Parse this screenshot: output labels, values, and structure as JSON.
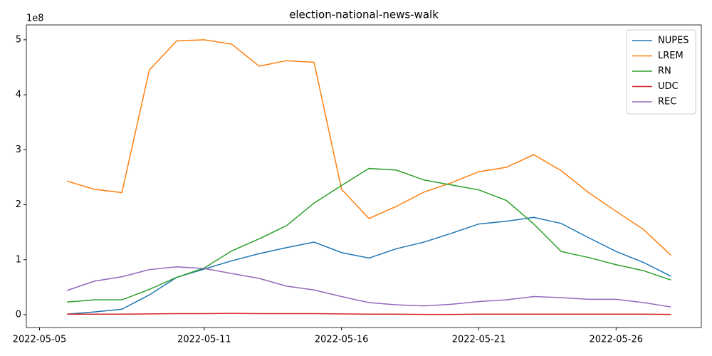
{
  "chart_data": {
    "type": "line",
    "title": "election-national-news-walk",
    "x": [
      "2022-05-06",
      "2022-05-07",
      "2022-05-08",
      "2022-05-09",
      "2022-05-10",
      "2022-05-11",
      "2022-05-12",
      "2022-05-13",
      "2022-05-14",
      "2022-05-15",
      "2022-05-16",
      "2022-05-17",
      "2022-05-18",
      "2022-05-19",
      "2022-05-20",
      "2022-05-21",
      "2022-05-22",
      "2022-05-23",
      "2022-05-24",
      "2022-05-25",
      "2022-05-26",
      "2022-05-27",
      "2022-05-28"
    ],
    "series": [
      {
        "name": "NUPES",
        "color": "#1f77b4",
        "values": [
          1000000.0,
          5000000.0,
          10000000.0,
          36000000.0,
          68000000.0,
          83000000.0,
          98000000.0,
          111000000.0,
          122000000.0,
          132000000.0,
          113000000.0,
          103000000.0,
          120000000.0,
          132000000.0,
          148000000.0,
          165000000.0,
          170000000.0,
          177000000.0,
          166000000.0,
          140000000.0,
          115000000.0,
          95000000.0,
          70000000.0
        ]
      },
      {
        "name": "LREM",
        "color": "#ff7f0e",
        "values": [
          243000000.0,
          228000000.0,
          222000000.0,
          445000000.0,
          498000000.0,
          500000000.0,
          492000000.0,
          452000000.0,
          462000000.0,
          459000000.0,
          228000000.0,
          175000000.0,
          197000000.0,
          223000000.0,
          240000000.0,
          260000000.0,
          268000000.0,
          291000000.0,
          262000000.0,
          222000000.0,
          188000000.0,
          155000000.0,
          108000000.0
        ]
      },
      {
        "name": "RN",
        "color": "#2ca02c",
        "values": [
          23000000.0,
          27000000.0,
          27000000.0,
          46000000.0,
          68000000.0,
          85000000.0,
          116000000.0,
          138000000.0,
          162000000.0,
          203000000.0,
          235000000.0,
          266000000.0,
          263000000.0,
          245000000.0,
          236000000.0,
          227000000.0,
          208000000.0,
          165000000.0,
          115000000.0,
          104000000.0,
          91000000.0,
          80000000.0,
          63000000.0
        ]
      },
      {
        "name": "UDC",
        "color": "#d62728",
        "values": [
          1000000.0,
          1000000.0,
          1000000.0,
          1500000.0,
          2000000.0,
          2000000.0,
          2500000.0,
          2000000.0,
          2000000.0,
          2000000.0,
          1500000.0,
          1000000.0,
          1000000.0,
          500000.0,
          500000.0,
          1000000.0,
          1000000.0,
          1000000.0,
          1000000.0,
          1000000.0,
          1000000.0,
          1000000.0,
          500000.0
        ]
      },
      {
        "name": "REC",
        "color": "#9467bd",
        "values": [
          44000000.0,
          61000000.0,
          69000000.0,
          82000000.0,
          87000000.0,
          84000000.0,
          75000000.0,
          66000000.0,
          52000000.0,
          45000000.0,
          33000000.0,
          22000000.0,
          18000000.0,
          16000000.0,
          19000000.0,
          24000000.0,
          27000000.0,
          33000000.0,
          31000000.0,
          28000000.0,
          28000000.0,
          22000000.0,
          14000000.0
        ]
      }
    ],
    "xlim": [
      "2022-05-04T12:30",
      "2022-05-29T02:30"
    ],
    "xticks": [
      "2022-05-05",
      "2022-05-11",
      "2022-05-16",
      "2022-05-21",
      "2022-05-26"
    ],
    "ylim": [
      -23300000.0,
      527000000.0
    ],
    "yticks": [
      0,
      {
        "value": 100000000.0,
        "label": "1"
      },
      {
        "value": 200000000.0,
        "label": "2"
      },
      {
        "value": 300000000.0,
        "label": "3"
      },
      {
        "value": 400000000.0,
        "label": "4"
      },
      {
        "value": 500000000.0,
        "label": "5"
      }
    ],
    "y_offset_label": "1e8",
    "legend": "upper right",
    "grid": false
  }
}
